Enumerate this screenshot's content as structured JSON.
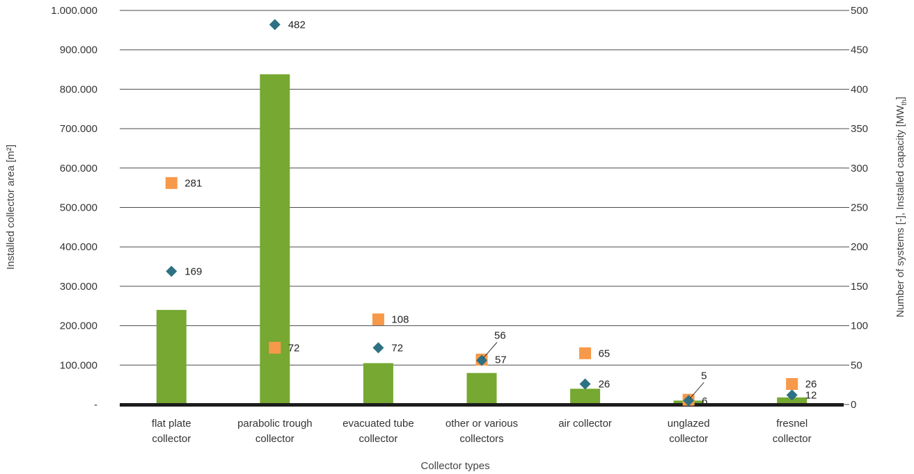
{
  "chart_data": {
    "type": "bar",
    "xlabel": "Collector types",
    "ylabel_left": "Installed collector area [m²]",
    "ylabel_right_prefix": "Number of systems [-], Installed capacity [MW",
    "ylabel_right_sub": "th",
    "ylabel_right_suffix": "]",
    "ylim_left": [
      0,
      1000000
    ],
    "ylim_right": [
      0,
      500
    ],
    "left_ticks": [
      "-",
      "100.000",
      "200.000",
      "300.000",
      "400.000",
      "500.000",
      "600.000",
      "700.000",
      "800.000",
      "900.000",
      "1.000.000"
    ],
    "right_ticks": [
      "0",
      "50",
      "100",
      "150",
      "200",
      "250",
      "300",
      "350",
      "400",
      "450",
      "500"
    ],
    "categories": [
      [
        "flat plate",
        "collector"
      ],
      [
        "parabolic trough",
        "collector"
      ],
      [
        "evacuated tube",
        "collector"
      ],
      [
        "other or various",
        "collectors"
      ],
      [
        "air collector"
      ],
      [
        "unglazed",
        "collector"
      ],
      [
        "fresnel",
        "collector"
      ]
    ],
    "bars": {
      "axis": "left",
      "color": "#76a832",
      "values": [
        240000,
        838000,
        105000,
        80000,
        40000,
        10000,
        18000
      ]
    },
    "squares": {
      "axis": "right",
      "color": "#f7994a",
      "values": [
        281,
        72,
        108,
        57,
        65,
        6,
        26
      ],
      "labels": [
        "281",
        "72",
        "108",
        "57",
        "65",
        "6",
        "26"
      ]
    },
    "diamonds": {
      "axis": "right",
      "color": "#2d7183",
      "values": [
        169,
        482,
        72,
        56,
        26,
        5,
        12
      ],
      "labels": [
        "169",
        "482",
        "72",
        "56",
        "26",
        "5",
        "12"
      ]
    },
    "grid": true
  }
}
